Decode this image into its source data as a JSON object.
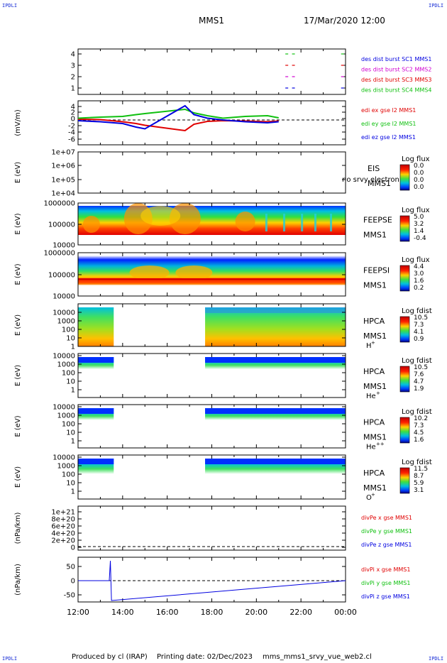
{
  "header": {
    "title": "MMS1",
    "date": "17/Mar/2020 12:00"
  },
  "corners": {
    "tl": "IPDLI",
    "tr": "IPDLI",
    "bl": "IPDLI",
    "br": "IPDLI"
  },
  "footer": {
    "produced": "Produced by cl (IRAP)",
    "printing": "Printing date: 02/Dec/2023",
    "script": "mms_mms1_srvy_vue_web2.cl"
  },
  "colors": {
    "red": "#e00000",
    "green": "#10c010",
    "blue": "#0000e0",
    "magenta": "#d000d0"
  },
  "x_ticks": [
    "12:00",
    "14:00",
    "16:00",
    "18:00",
    "20:00",
    "22:00",
    "00:00"
  ],
  "panels": {
    "burst": {
      "yticks": [
        "4",
        "3",
        "2",
        "1"
      ],
      "legend": [
        "des dist burst SC1 MMS1",
        "des dist burst SC2 MMS2",
        "des dist burst SC3 MMS3",
        "des dist burst SC4 MMS4"
      ]
    },
    "edi": {
      "ylabel": "(mV/m)",
      "yticks": [
        "4",
        "2",
        "0",
        "-2",
        "-4",
        "-6"
      ],
      "legend": [
        "edi ex gse l2 MMS1",
        "edi ey gse l2 MMS1",
        "edi ez gse l2 MMS1"
      ]
    },
    "eis": {
      "ylabel": "E (eV)",
      "yticks": [
        "1e+07",
        "1e+06",
        "1e+05",
        "1e+04"
      ],
      "label": "EIS",
      "sublabel": "MMS1",
      "overlay": "no srvy electron to",
      "cbar_title": "Log flux",
      "cbar_ticks": [
        "0.0",
        "0.0",
        "0.0",
        "0.0"
      ]
    },
    "feepse": {
      "ylabel": "E (eV)",
      "yticks": [
        "1000000",
        "100000",
        "10000"
      ],
      "label": "FEEPSE",
      "sublabel": "MMS1",
      "cbar_title": "Log flux",
      "cbar_ticks": [
        "5.0",
        "3.2",
        "1.4",
        "-0.4"
      ]
    },
    "feepsi": {
      "ylabel": "E (eV)",
      "yticks": [
        "1000000",
        "100000",
        "10000"
      ],
      "label": "FEEPSI",
      "sublabel": "MMS1",
      "cbar_title": "Log flux",
      "cbar_ticks": [
        "4.4",
        "3.0",
        "1.6",
        "0.2"
      ]
    },
    "hpca_h": {
      "ylabel": "E (eV)",
      "yticks": [
        "10000",
        "1000",
        "100",
        "10",
        "1"
      ],
      "label": "HPCA",
      "sublabel": "MMS1",
      "species": "H",
      "charge": "+",
      "cbar_title": "Log fdist",
      "cbar_ticks": [
        "10.5",
        "7.3",
        "4.1",
        "0.9"
      ]
    },
    "hpca_he": {
      "ylabel": "E (eV)",
      "yticks": [
        "10000",
        "1000",
        "100",
        "10",
        "1"
      ],
      "label": "HPCA",
      "sublabel": "MMS1",
      "species": "He",
      "charge": "+",
      "cbar_title": "Log fdist",
      "cbar_ticks": [
        "10.5",
        "7.6",
        "4.7",
        "1.9"
      ]
    },
    "hpca_he2": {
      "ylabel": "E (eV)",
      "yticks": [
        "10000",
        "1000",
        "100",
        "10",
        "1"
      ],
      "label": "HPCA",
      "sublabel": "MMS1",
      "species": "He",
      "charge": "++",
      "cbar_title": "Log fdist",
      "cbar_ticks": [
        "10.2",
        "7.3",
        "4.5",
        "1.6"
      ]
    },
    "hpca_o": {
      "ylabel": "E (eV)",
      "yticks": [
        "10000",
        "1000",
        "100",
        "10",
        "1"
      ],
      "label": "HPCA",
      "sublabel": "MMS1",
      "species": "O",
      "charge": "+",
      "cbar_title": "Log fdist",
      "cbar_ticks": [
        "11.5",
        "8.7",
        "5.9",
        "3.1"
      ]
    },
    "divpe": {
      "ylabel": "(nPa/km)",
      "yticks": [
        "1e+21",
        "8e+20",
        "6e+20",
        "4e+20",
        "2e+20",
        "0"
      ],
      "legend": [
        "divPe x gse MMS1",
        "divPe y gse MMS1",
        "divPe z gse MMS1"
      ]
    },
    "divpi": {
      "ylabel": "(nPa/km)",
      "yticks": [
        "50",
        "0",
        "-50"
      ],
      "legend": [
        "divPi x gse MMS1",
        "divPi y gse MMS1",
        "divPi z gse MMS1"
      ]
    }
  },
  "chart_data": [
    {
      "type": "scatter",
      "panel": "burst",
      "x_unit": "UT hours",
      "ylim": [
        0.5,
        4.5
      ],
      "series": [
        {
          "name": "des dist burst SC1 MMS1",
          "y": 1,
          "x": [
            21.3,
            21.6,
            23.8
          ]
        },
        {
          "name": "des dist burst SC2 MMS2",
          "y": 2,
          "x": [
            21.3,
            21.6,
            23.8
          ]
        },
        {
          "name": "des dist burst SC3 MMS3",
          "y": 3,
          "x": [
            21.3,
            21.6,
            23.8
          ]
        },
        {
          "name": "des dist burst SC4 MMS4",
          "y": 4,
          "x": [
            21.3,
            21.6,
            23.8
          ]
        }
      ]
    },
    {
      "type": "line",
      "panel": "edi",
      "ylim": [
        -6,
        5
      ],
      "xlim": [
        12,
        24
      ],
      "series": [
        {
          "name": "edi ex gse l2 MMS1",
          "x": [
            12,
            13,
            14,
            14.6,
            15.0,
            16.8,
            17.2,
            17.8,
            18.5,
            19.5,
            20.5,
            21.0
          ],
          "y": [
            0.2,
            0.1,
            -0.5,
            -1.0,
            -1.5,
            -3.0,
            -1.2,
            -0.4,
            -0.2,
            -0.3,
            -0.5,
            -0.3
          ]
        },
        {
          "name": "edi ey gse l2 MMS1",
          "x": [
            12,
            13,
            14,
            14.6,
            15.0,
            16.8,
            17.2,
            17.8,
            18.5,
            19.5,
            20.5,
            21.0
          ],
          "y": [
            0.5,
            0.8,
            1.0,
            1.5,
            1.8,
            3.0,
            2.0,
            1.2,
            0.5,
            1.0,
            1.2,
            0.6
          ]
        },
        {
          "name": "edi ez gse l2 MMS1",
          "x": [
            12,
            13,
            14,
            14.6,
            15.0,
            16.8,
            17.2,
            17.8,
            18.5,
            19.5,
            20.5,
            21.0
          ],
          "y": [
            -0.2,
            -0.5,
            -1.0,
            -2.0,
            -2.5,
            4.0,
            1.5,
            0.5,
            0.0,
            -0.5,
            -0.8,
            -0.5
          ]
        }
      ]
    },
    {
      "type": "line",
      "panel": "divpi",
      "ylim": [
        -75,
        75
      ],
      "xlim": [
        12,
        24
      ],
      "series": [
        {
          "name": "divPi z gse MMS1",
          "x": [
            12,
            13.4,
            13.45,
            13.5,
            24
          ],
          "y": [
            0,
            0,
            70,
            -70,
            0
          ]
        }
      ]
    },
    {
      "type": "heatmap",
      "panel": "feepse",
      "colorbar_range": [
        -0.4,
        5.0
      ]
    },
    {
      "type": "heatmap",
      "panel": "feepsi",
      "colorbar_range": [
        0.2,
        4.4
      ]
    },
    {
      "type": "heatmap",
      "panel": "hpca_h",
      "colorbar_range": [
        0.9,
        10.5
      ]
    },
    {
      "type": "heatmap",
      "panel": "hpca_he",
      "colorbar_range": [
        1.9,
        10.5
      ]
    },
    {
      "type": "heatmap",
      "panel": "hpca_he2",
      "colorbar_range": [
        1.6,
        10.2
      ]
    },
    {
      "type": "heatmap",
      "panel": "hpca_o",
      "colorbar_range": [
        3.1,
        11.5
      ]
    }
  ]
}
